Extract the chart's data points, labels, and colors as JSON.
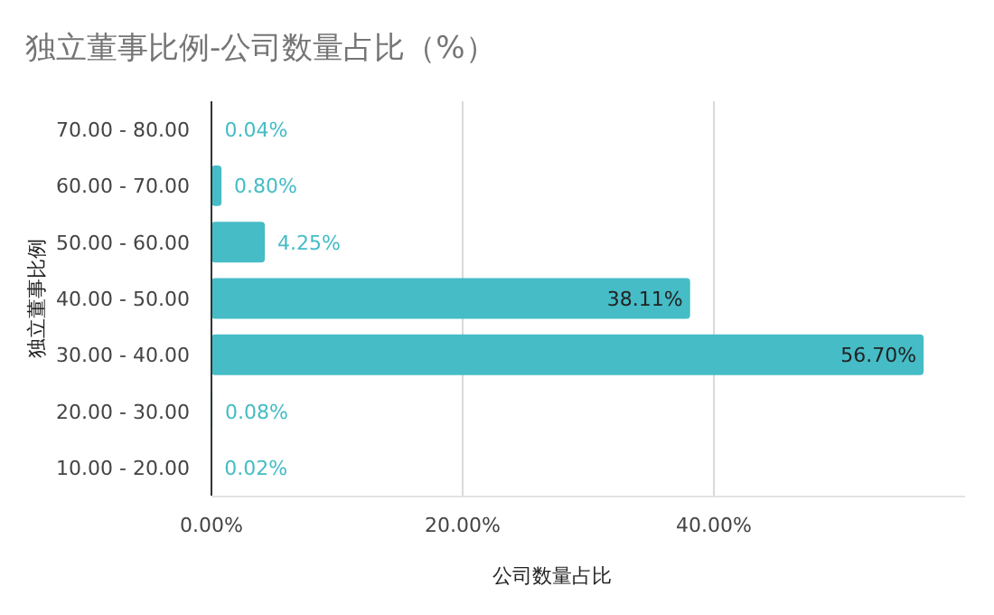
{
  "chart_data": {
    "type": "bar",
    "orientation": "horizontal",
    "title": "独立董事比例-公司数量占比（%）",
    "xlabel": "公司数量占比",
    "ylabel": "独立董事比例",
    "categories": [
      "70.00 - 80.00",
      "60.00 - 70.00",
      "50.00 - 60.00",
      "40.00 - 50.00",
      "30.00 - 40.00",
      "20.00 - 30.00",
      "10.00 - 20.00"
    ],
    "values": [
      0.04,
      0.8,
      4.25,
      38.11,
      56.7,
      0.08,
      0.02
    ],
    "value_labels": [
      "0.04%",
      "0.80%",
      "4.25%",
      "38.11%",
      "56.70%",
      "0.08%",
      "0.02%"
    ],
    "color": "#45bcc6",
    "xlim": [
      0,
      60
    ],
    "xticks": [
      {
        "value": 0,
        "label": "0.00%"
      },
      {
        "value": 20,
        "label": "20.00%"
      },
      {
        "value": 40,
        "label": "40.00%"
      }
    ],
    "grid": "x"
  }
}
